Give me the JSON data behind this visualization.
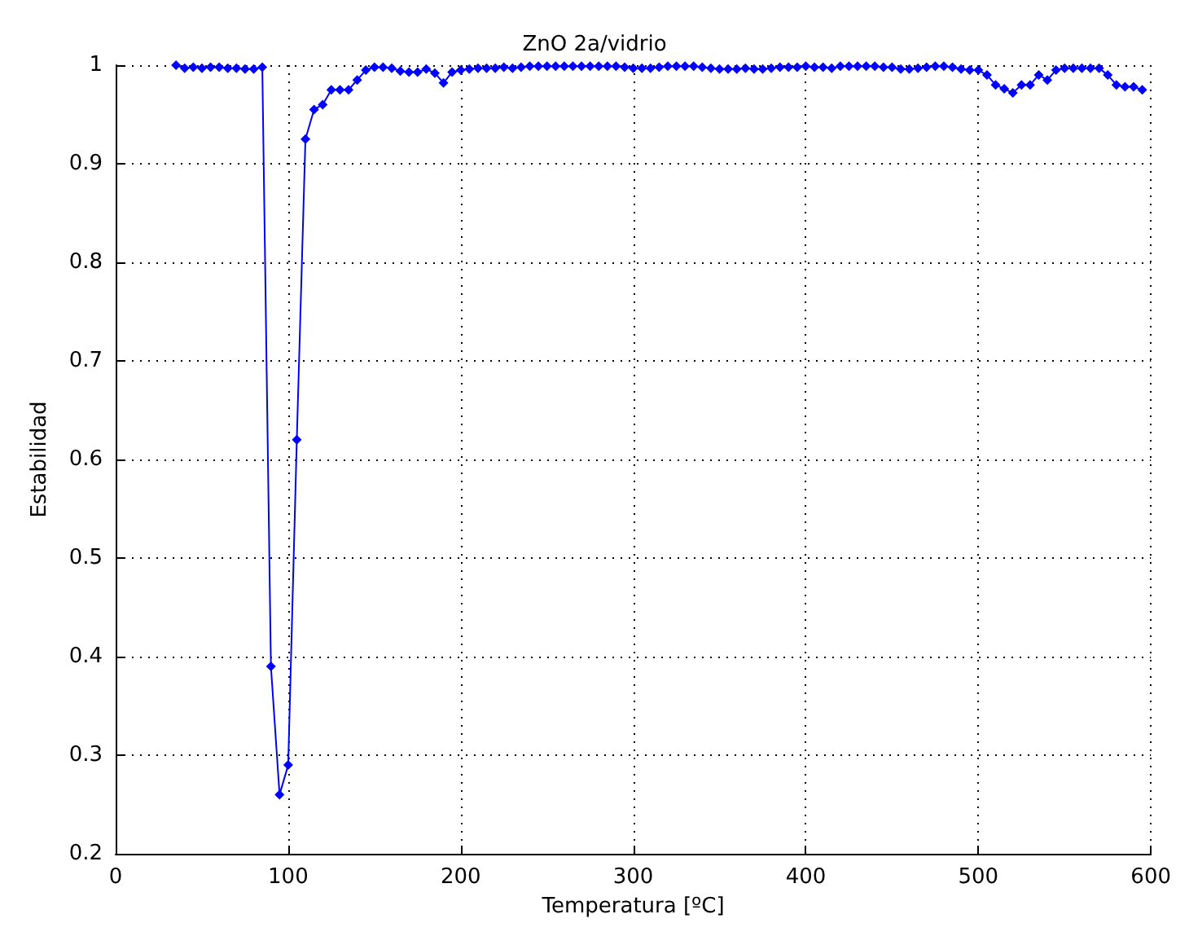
{
  "chart_data": {
    "type": "line",
    "title": "ZnO 2a/vidrio",
    "xlabel": "Temperatura [ºC]",
    "ylabel": "Estabilidad",
    "xlim": [
      0,
      600
    ],
    "xticks": [
      0,
      100,
      200,
      300,
      400,
      500,
      600
    ],
    "ylim": [
      0.2,
      1
    ],
    "yticks": [
      0.2,
      0.3,
      0.4,
      0.5,
      0.6,
      0.7,
      0.8,
      0.9,
      1
    ],
    "grid": true,
    "marker": "diamond",
    "line_style": "solid",
    "series": [
      {
        "color": "#0000ff",
        "x": [
          35,
          40,
          45,
          50,
          55,
          60,
          65,
          70,
          75,
          80,
          85,
          90,
          95,
          100,
          105,
          110,
          115,
          120,
          125,
          130,
          135,
          140,
          145,
          150,
          155,
          160,
          165,
          170,
          175,
          180,
          185,
          190,
          195,
          200,
          205,
          210,
          215,
          220,
          225,
          230,
          235,
          240,
          245,
          250,
          255,
          260,
          265,
          270,
          275,
          280,
          285,
          290,
          295,
          300,
          305,
          310,
          315,
          320,
          325,
          330,
          335,
          340,
          345,
          350,
          355,
          360,
          365,
          370,
          375,
          380,
          385,
          390,
          395,
          400,
          405,
          410,
          415,
          420,
          425,
          430,
          435,
          440,
          445,
          450,
          455,
          460,
          465,
          470,
          475,
          480,
          485,
          490,
          495,
          500,
          505,
          510,
          515,
          520,
          525,
          530,
          535,
          540,
          545,
          550,
          555,
          560,
          565,
          570,
          575,
          580,
          585,
          590,
          595
        ],
        "values": [
          1,
          0.997,
          0.998,
          0.997,
          0.998,
          0.998,
          0.997,
          0.997,
          0.996,
          0.996,
          0.998,
          0.39,
          0.26,
          0.29,
          0.62,
          0.925,
          0.955,
          0.96,
          0.975,
          0.975,
          0.975,
          0.985,
          0.995,
          0.998,
          0.998,
          0.997,
          0.994,
          0.993,
          0.993,
          0.996,
          0.992,
          0.982,
          0.993,
          0.995,
          0.996,
          0.997,
          0.997,
          0.997,
          0.998,
          0.997,
          0.998,
          0.999,
          0.999,
          0.999,
          0.999,
          0.999,
          0.999,
          0.999,
          0.999,
          0.999,
          0.999,
          0.999,
          0.998,
          0.997,
          0.997,
          0.997,
          0.998,
          0.999,
          0.999,
          0.999,
          0.999,
          0.998,
          0.997,
          0.996,
          0.996,
          0.996,
          0.997,
          0.996,
          0.996,
          0.997,
          0.998,
          0.998,
          0.998,
          0.999,
          0.998,
          0.998,
          0.997,
          0.999,
          0.999,
          0.999,
          0.999,
          0.999,
          0.998,
          0.998,
          0.996,
          0.996,
          0.997,
          0.998,
          0.999,
          0.999,
          0.998,
          0.996,
          0.995,
          0.995,
          0.99,
          0.98,
          0.976,
          0.972,
          0.98,
          0.98,
          0.99,
          0.985,
          0.995,
          0.997,
          0.997,
          0.997,
          0.997,
          0.997,
          0.99,
          0.98,
          0.978,
          0.978,
          0.975
        ]
      }
    ]
  }
}
